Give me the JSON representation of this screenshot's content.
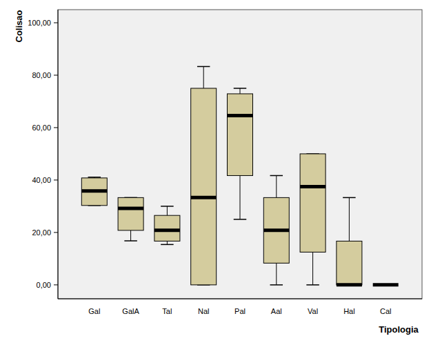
{
  "chart_data": {
    "type": "box",
    "x_label": "Tipologia",
    "y_label": "Colisao",
    "categories": [
      "Gal",
      "GalA",
      "Tal",
      "Nal",
      "Pal",
      "Aal",
      "Val",
      "Hal",
      "Cal"
    ],
    "min": [
      30.3,
      16.8,
      15.4,
      0,
      25,
      0,
      0,
      0,
      0
    ],
    "q1": [
      30.3,
      20.8,
      16.7,
      0,
      41.7,
      8.3,
      12.5,
      0,
      0
    ],
    "median": [
      35.8,
      29.2,
      20.8,
      33.3,
      64.6,
      20.8,
      37.5,
      0,
      0
    ],
    "q3": [
      40.8,
      33.3,
      26.5,
      75,
      72.9,
      33.3,
      50,
      16.7,
      0
    ],
    "max": [
      41.1,
      33.3,
      30,
      83.3,
      75,
      41.7,
      50,
      33.3,
      0
    ],
    "color": "#d4cc9e",
    "ylim": [
      -5.3,
      105
    ],
    "yticks": [
      {
        "value": 0,
        "label": "0,00"
      },
      {
        "value": 20,
        "label": "20,00"
      },
      {
        "value": 40,
        "label": "40,00"
      },
      {
        "value": 60,
        "label": "60,00"
      },
      {
        "value": 80,
        "label": "80,00"
      },
      {
        "value": 100,
        "label": "100,00"
      }
    ],
    "grid": false
  }
}
